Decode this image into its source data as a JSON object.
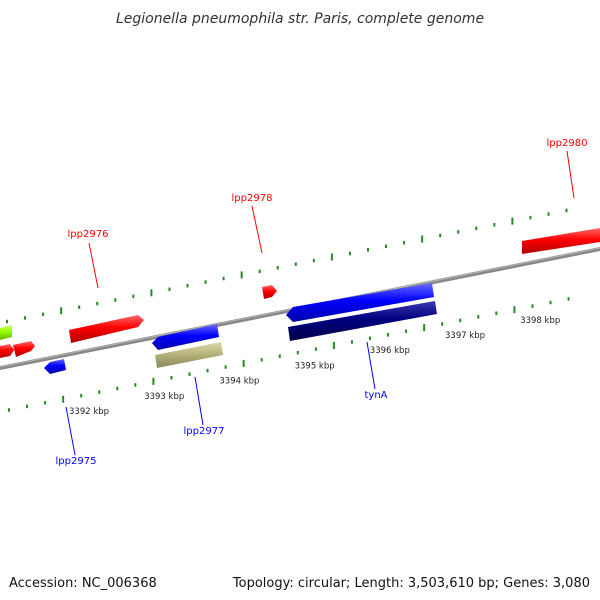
{
  "title": "Legionella pneumophila str. Paris, complete genome",
  "footer": {
    "accession": "Accession: NC_006368",
    "summary": "Topology: circular; Length: 3,503,610 bp; Genes: 3,080"
  },
  "colors": {
    "forward_gene": "#ff0000",
    "reverse_gene": "#0000ff",
    "rna_gene": "#b7b47c",
    "dark_gene": "#000080",
    "other_gene": "#99ff00",
    "tick": "#228b22",
    "backbone": "#888888"
  },
  "scale_ticks_kbp": [
    {
      "label": "3392 kbp",
      "kbp": 3392
    },
    {
      "label": "3393 kbp",
      "kbp": 3393
    },
    {
      "label": "3394 kbp",
      "kbp": 3394
    },
    {
      "label": "3395 kbp",
      "kbp": 3395
    },
    {
      "label": "3396 kbp",
      "kbp": 3396
    },
    {
      "label": "3397 kbp",
      "kbp": 3397
    },
    {
      "label": "3398 kbp",
      "kbp": 3398
    }
  ],
  "gene_labels": [
    {
      "name": "lpp2976",
      "strand": "forward"
    },
    {
      "name": "lpp2978",
      "strand": "forward"
    },
    {
      "name": "lpp2980",
      "strand": "forward"
    },
    {
      "name": "lpp2975",
      "strand": "reverse"
    },
    {
      "name": "lpp2977",
      "strand": "reverse"
    },
    {
      "name": "tynA",
      "strand": "reverse"
    }
  ]
}
